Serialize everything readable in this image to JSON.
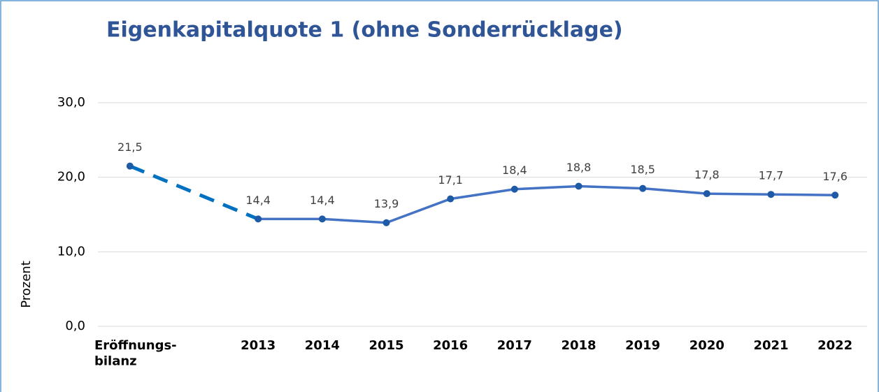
{
  "chart_data": {
    "type": "line",
    "title": "Eigenkapitalquote 1 (ohne Sonderrücklage)",
    "y_label": "Prozent",
    "categories": [
      "Eröffnungs-\nbilanz",
      null,
      "2013",
      "2014",
      "2015",
      "2016",
      "2017",
      "2018",
      "2019",
      "2020",
      "2021",
      "2022"
    ],
    "values": [
      21.5,
      null,
      14.4,
      14.4,
      13.9,
      17.1,
      18.4,
      18.8,
      18.5,
      17.8,
      17.7,
      17.6
    ],
    "value_labels": [
      "21,5",
      null,
      "14,4",
      "14,4",
      "13,9",
      "17,1",
      "18,4",
      "18,8",
      "18,5",
      "17,8",
      "17,7",
      "17,6"
    ],
    "color": "#4472c4",
    "marker_color": "#1f5aa6",
    "gap_color": "#0070c0",
    "connect_gaps_dashed": true,
    "ylim": [
      0,
      30
    ],
    "yticks": [
      {
        "value": 0,
        "label": "0,0"
      },
      {
        "value": 10,
        "label": "10,0"
      },
      {
        "value": 20,
        "label": "20,0"
      },
      {
        "value": 30,
        "label": "30,0"
      }
    ],
    "grid": true
  }
}
